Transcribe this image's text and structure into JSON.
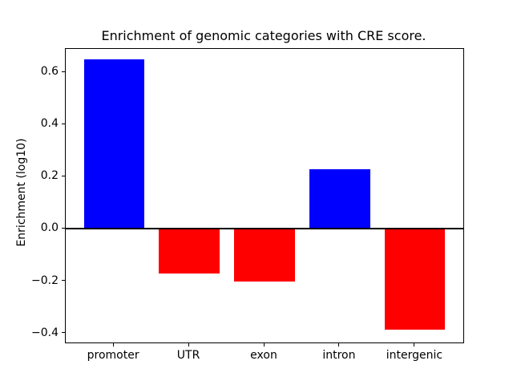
{
  "chart_data": {
    "type": "bar",
    "title": "Enrichment of genomic categories with CRE score.",
    "xlabel": "",
    "ylabel": "Enrichment (log10)",
    "categories": [
      "promoter",
      "UTR",
      "exon",
      "intron",
      "intergenic"
    ],
    "values": [
      0.65,
      -0.17,
      -0.2,
      0.23,
      -0.385
    ],
    "bar_colors": [
      "#0000ff",
      "#ff0000",
      "#ff0000",
      "#0000ff",
      "#ff0000"
    ],
    "positive_color": "#0000ff",
    "negative_color": "#ff0000",
    "bar_width_fraction": 0.8,
    "ylim": [
      -0.435,
      0.69
    ],
    "yticks": [
      {
        "value": -0.4,
        "label": "−0.4"
      },
      {
        "value": -0.2,
        "label": "−0.2"
      },
      {
        "value": 0.0,
        "label": "0.0"
      },
      {
        "value": 0.2,
        "label": "0.2"
      },
      {
        "value": 0.4,
        "label": "0.4"
      },
      {
        "value": 0.6,
        "label": "0.6"
      }
    ],
    "zero_line": {
      "value": 0.0,
      "color": "#000000",
      "linewidth": 2
    },
    "grid": false,
    "legend": false,
    "background_color": "#ffffff",
    "spine_color": "#000000"
  }
}
